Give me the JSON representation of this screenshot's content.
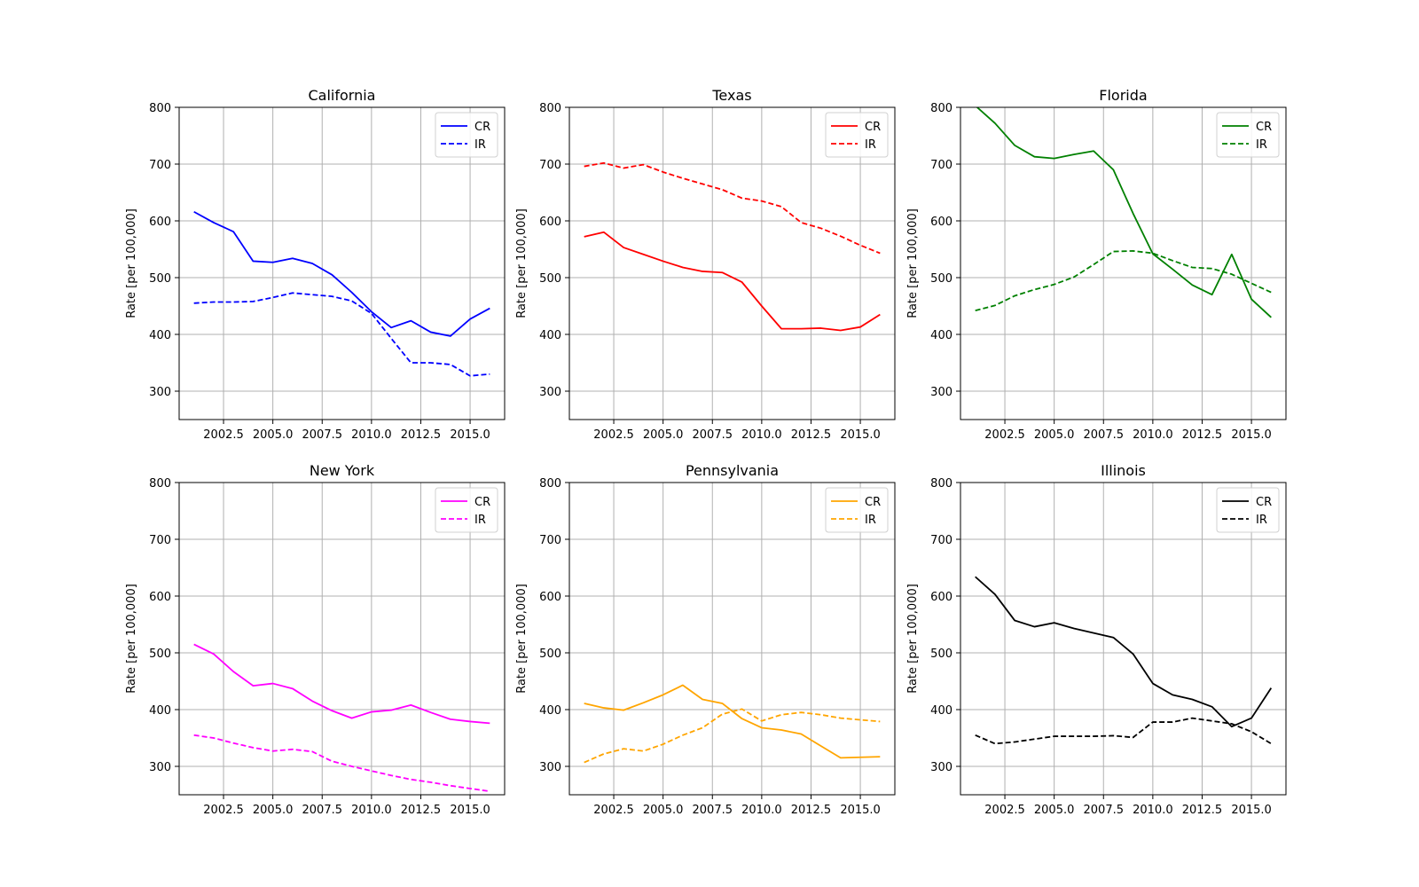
{
  "chart_data": [
    {
      "type": "line",
      "title": "California",
      "ylabel": "Rate [per 100,000]",
      "xlabel": "",
      "color": "#0000ff",
      "ylim": [
        250,
        800
      ],
      "xlim": [
        2000.25,
        2016.75
      ],
      "yticks": [
        300,
        400,
        500,
        600,
        700,
        800
      ],
      "xticks": [
        2002.5,
        2005.0,
        2007.5,
        2010.0,
        2012.5,
        2015.0
      ],
      "grid": true,
      "legend": "top-right",
      "x": [
        2001,
        2002,
        2003,
        2004,
        2005,
        2006,
        2007,
        2008,
        2009,
        2010,
        2011,
        2012,
        2013,
        2014,
        2015,
        2016
      ],
      "series": [
        {
          "name": "CR",
          "style": "solid",
          "values": [
            616,
            597,
            581,
            529,
            527,
            534,
            525,
            505,
            474,
            440,
            412,
            424,
            404,
            397,
            427,
            446
          ]
        },
        {
          "name": "IR",
          "style": "dashed",
          "values": [
            455,
            457,
            457,
            458,
            465,
            473,
            470,
            467,
            459,
            437,
            393,
            350,
            350,
            347,
            327,
            330
          ]
        }
      ]
    },
    {
      "type": "line",
      "title": "Texas",
      "ylabel": "Rate [per 100,000]",
      "xlabel": "",
      "color": "#ff0000",
      "ylim": [
        250,
        800
      ],
      "xlim": [
        2000.25,
        2016.75
      ],
      "yticks": [
        300,
        400,
        500,
        600,
        700,
        800
      ],
      "xticks": [
        2002.5,
        2005.0,
        2007.5,
        2010.0,
        2012.5,
        2015.0
      ],
      "grid": true,
      "legend": "top-right",
      "x": [
        2001,
        2002,
        2003,
        2004,
        2005,
        2006,
        2007,
        2008,
        2009,
        2010,
        2011,
        2012,
        2013,
        2014,
        2015,
        2016
      ],
      "series": [
        {
          "name": "CR",
          "style": "solid",
          "values": [
            572,
            580,
            553,
            541,
            529,
            518,
            511,
            509,
            492,
            450,
            410,
            410,
            411,
            407,
            413,
            435
          ]
        },
        {
          "name": "IR",
          "style": "dashed",
          "values": [
            696,
            702,
            693,
            699,
            686,
            675,
            665,
            655,
            640,
            635,
            625,
            597,
            587,
            573,
            557,
            543
          ]
        }
      ]
    },
    {
      "type": "line",
      "title": "Florida",
      "ylabel": "Rate [per 100,000]",
      "xlabel": "",
      "color": "#008000",
      "ylim": [
        250,
        800
      ],
      "xlim": [
        2000.25,
        2016.75
      ],
      "yticks": [
        300,
        400,
        500,
        600,
        700,
        800
      ],
      "xticks": [
        2002.5,
        2005.0,
        2007.5,
        2010.0,
        2012.5,
        2015.0
      ],
      "grid": true,
      "legend": "top-right",
      "x": [
        2001,
        2002,
        2003,
        2004,
        2005,
        2006,
        2007,
        2008,
        2009,
        2010,
        2011,
        2012,
        2013,
        2014,
        2015,
        2016
      ],
      "series": [
        {
          "name": "CR",
          "style": "solid",
          "values": [
            803,
            772,
            733,
            713,
            710,
            717,
            723,
            690,
            613,
            542,
            515,
            487,
            470,
            541,
            462,
            430
          ]
        },
        {
          "name": "IR",
          "style": "dashed",
          "values": [
            442,
            451,
            468,
            479,
            488,
            501,
            523,
            546,
            547,
            543,
            530,
            518,
            516,
            506,
            490,
            474
          ]
        }
      ]
    },
    {
      "type": "line",
      "title": "New York",
      "ylabel": "Rate [per 100,000]",
      "xlabel": "",
      "color": "#ff00ff",
      "ylim": [
        250,
        800
      ],
      "xlim": [
        2000.25,
        2016.75
      ],
      "yticks": [
        300,
        400,
        500,
        600,
        700,
        800
      ],
      "xticks": [
        2002.5,
        2005.0,
        2007.5,
        2010.0,
        2012.5,
        2015.0
      ],
      "grid": true,
      "legend": "top-right",
      "x": [
        2001,
        2002,
        2003,
        2004,
        2005,
        2006,
        2007,
        2008,
        2009,
        2010,
        2011,
        2012,
        2013,
        2014,
        2015,
        2016
      ],
      "series": [
        {
          "name": "CR",
          "style": "solid",
          "values": [
            515,
            498,
            467,
            442,
            446,
            437,
            415,
            398,
            385,
            396,
            399,
            408,
            395,
            383,
            379,
            376
          ]
        },
        {
          "name": "IR",
          "style": "dashed",
          "values": [
            355,
            350,
            341,
            333,
            327,
            330,
            326,
            309,
            300,
            292,
            284,
            277,
            272,
            266,
            261,
            256
          ]
        }
      ]
    },
    {
      "type": "line",
      "title": "Pennsylvania",
      "ylabel": "Rate [per 100,000]",
      "xlabel": "",
      "color": "#ffa500",
      "ylim": [
        250,
        800
      ],
      "xlim": [
        2000.25,
        2016.75
      ],
      "yticks": [
        300,
        400,
        500,
        600,
        700,
        800
      ],
      "xticks": [
        2002.5,
        2005.0,
        2007.5,
        2010.0,
        2012.5,
        2015.0
      ],
      "grid": true,
      "legend": "top-right",
      "x": [
        2001,
        2002,
        2003,
        2004,
        2005,
        2006,
        2007,
        2008,
        2009,
        2010,
        2011,
        2012,
        2013,
        2014,
        2015,
        2016
      ],
      "series": [
        {
          "name": "CR",
          "style": "solid",
          "values": [
            411,
            403,
            399,
            412,
            426,
            443,
            418,
            411,
            384,
            368,
            364,
            357,
            336,
            315,
            316,
            317
          ]
        },
        {
          "name": "IR",
          "style": "dashed",
          "values": [
            307,
            322,
            331,
            327,
            339,
            355,
            368,
            392,
            401,
            380,
            391,
            395,
            391,
            385,
            382,
            379
          ]
        }
      ]
    },
    {
      "type": "line",
      "title": "Illinois",
      "ylabel": "Rate [per 100,000]",
      "xlabel": "",
      "color": "#000000",
      "ylim": [
        250,
        800
      ],
      "xlim": [
        2000.25,
        2016.75
      ],
      "yticks": [
        300,
        400,
        500,
        600,
        700,
        800
      ],
      "xticks": [
        2002.5,
        2005.0,
        2007.5,
        2010.0,
        2012.5,
        2015.0
      ],
      "grid": true,
      "legend": "top-right",
      "x": [
        2001,
        2002,
        2003,
        2004,
        2005,
        2006,
        2007,
        2008,
        2009,
        2010,
        2011,
        2012,
        2013,
        2014,
        2015,
        2016
      ],
      "series": [
        {
          "name": "CR",
          "style": "solid",
          "values": [
            634,
            603,
            557,
            546,
            553,
            543,
            535,
            527,
            498,
            446,
            426,
            418,
            405,
            370,
            385,
            438
          ]
        },
        {
          "name": "IR",
          "style": "dashed",
          "values": [
            355,
            340,
            343,
            348,
            353,
            353,
            353,
            354,
            351,
            378,
            378,
            385,
            380,
            375,
            361,
            340
          ]
        }
      ]
    }
  ]
}
